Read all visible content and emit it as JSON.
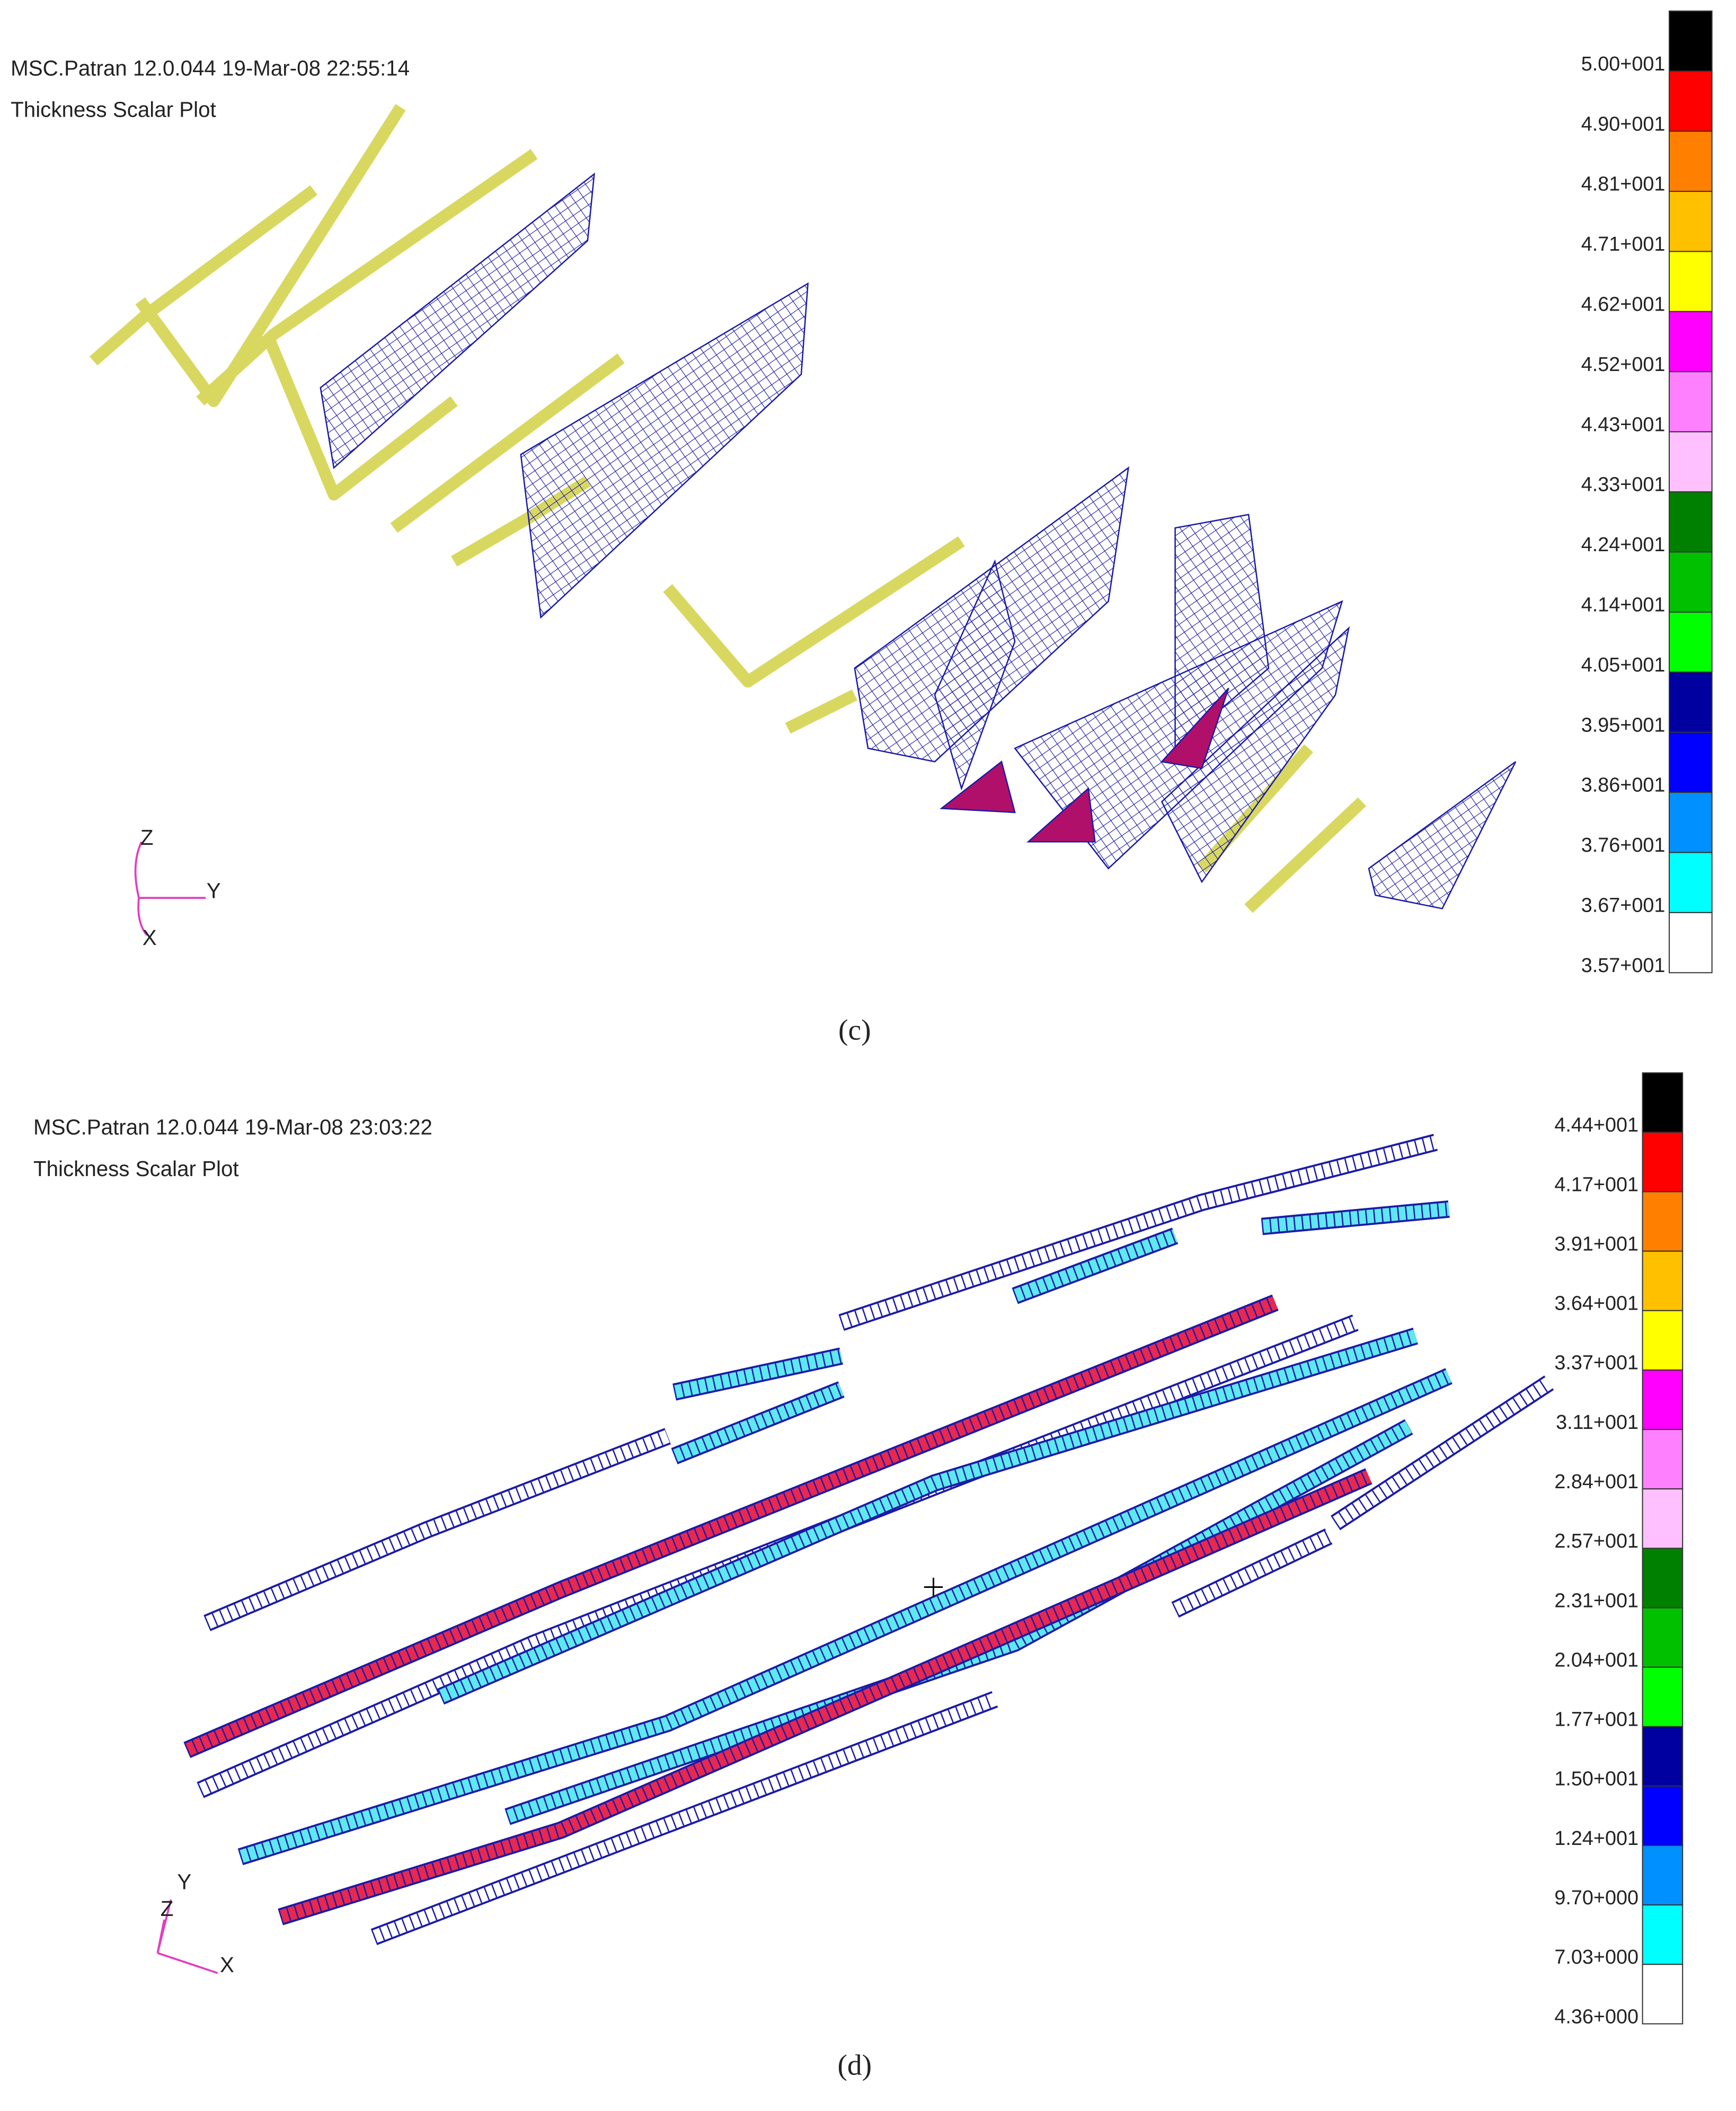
{
  "panels": [
    {
      "header": [
        "MSC.Patran 12.0.044 19-Mar-08 22:55:14",
        "Thickness Scalar Plot"
      ],
      "legend": {
        "labels": [
          "5.00+001",
          "4.90+001",
          "4.81+001",
          "4.71+001",
          "4.62+001",
          "4.52+001",
          "4.43+001",
          "4.33+001",
          "4.24+001",
          "4.14+001",
          "4.05+001",
          "3.95+001",
          "3.86+001",
          "3.76+001",
          "3.67+001",
          "3.57+001"
        ],
        "colors": [
          "#000000",
          "#ff0000",
          "#ff8000",
          "#ffc000",
          "#ffff00",
          "#ff00ff",
          "#ff80ff",
          "#ffc0ff",
          "#008000",
          "#00c000",
          "#00ff00",
          "#0000a0",
          "#0000ff",
          "#0090ff",
          "#00ffff",
          "#ffffff"
        ]
      },
      "axes": [
        "Z",
        "Y",
        "X"
      ],
      "caption": "(c)"
    },
    {
      "header": [
        "MSC.Patran 12.0.044 19-Mar-08 23:03:22",
        "Thickness Scalar Plot"
      ],
      "legend": {
        "labels": [
          "4.44+001",
          "4.17+001",
          "3.91+001",
          "3.64+001",
          "3.37+001",
          "3.11+001",
          "2.84+001",
          "2.57+001",
          "2.31+001",
          "2.04+001",
          "1.77+001",
          "1.50+001",
          "1.24+001",
          "9.70+000",
          "7.03+000",
          "4.36+000"
        ],
        "colors": [
          "#000000",
          "#ff0000",
          "#ff8000",
          "#ffc000",
          "#ffff00",
          "#ff00ff",
          "#ff80ff",
          "#ffc0ff",
          "#008000",
          "#00c000",
          "#00ff00",
          "#0000a0",
          "#0000ff",
          "#0090ff",
          "#00ffff",
          "#ffffff"
        ]
      },
      "axes": [
        "Y",
        "Z",
        "X"
      ],
      "caption": "(d)"
    }
  ]
}
